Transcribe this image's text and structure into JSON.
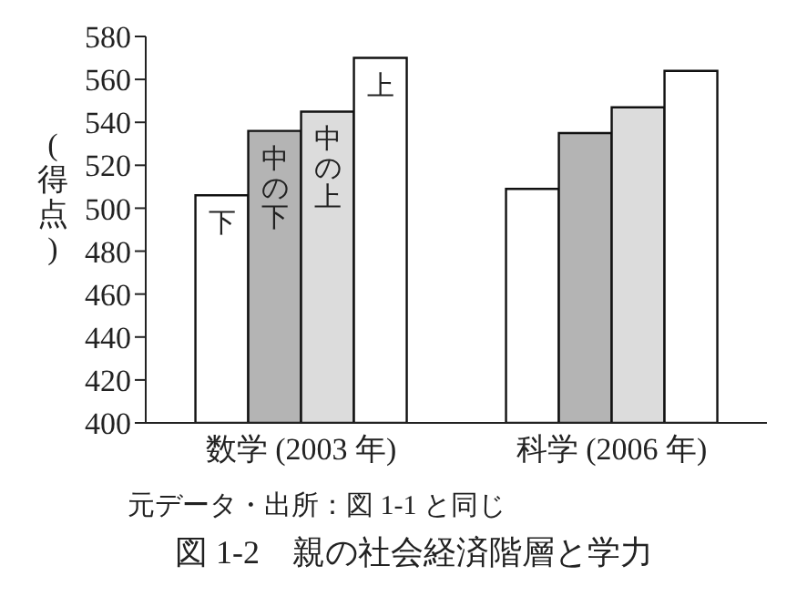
{
  "chart_data": {
    "type": "bar",
    "title": "図 1-2　親の社会経済階層と学力",
    "ylabel": "(得点)",
    "annotations": [
      "元データ・出所：図 1-1 と同じ"
    ],
    "categories": [
      "数学 (2003 年)",
      "科学 (2006 年)"
    ],
    "series": [
      {
        "name": "下",
        "color": "#ffffff",
        "values": [
          506,
          509
        ]
      },
      {
        "name": "中の下",
        "color": "#b4b4b4",
        "values": [
          536,
          535
        ]
      },
      {
        "name": "中の上",
        "color": "#dcdcdc",
        "values": [
          545,
          547
        ]
      },
      {
        "name": "上",
        "color": "#ffffff",
        "values": [
          570,
          564
        ]
      }
    ],
    "ylim": [
      400,
      580
    ],
    "yticks": [
      400,
      420,
      440,
      460,
      480,
      500,
      520,
      540,
      560,
      580
    ],
    "grid": false,
    "legend": false
  }
}
